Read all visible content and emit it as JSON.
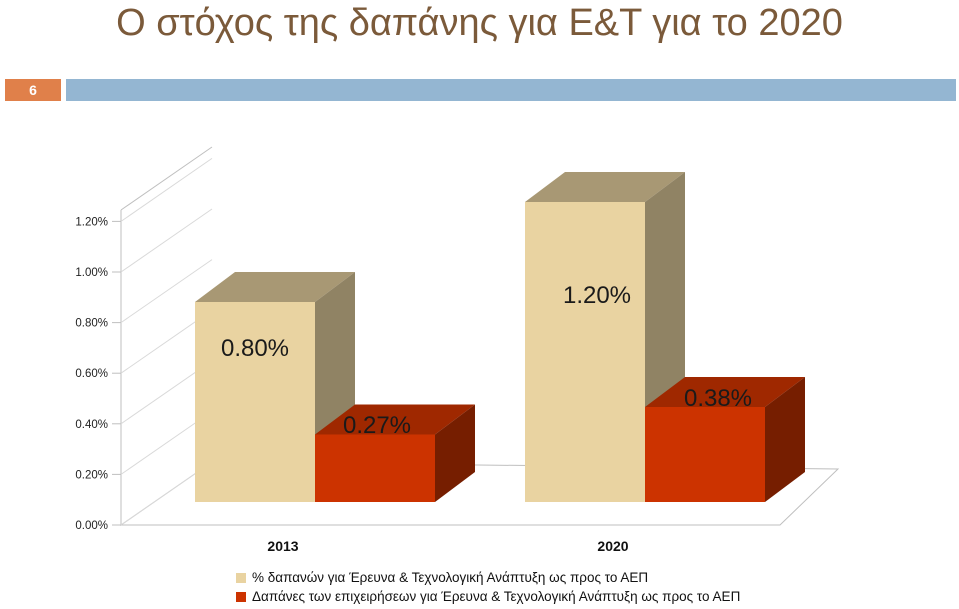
{
  "slide": {
    "title": "Ο στόχος της δαπάνης για Ε&Τ για το  2020",
    "number": "6"
  },
  "colors": {
    "title": "#7b5a3a",
    "slide_number_bg": "#e0804a",
    "header_bar": "#94b6d2",
    "series_1": "#e9d3a1",
    "series_2": "#cc3300"
  },
  "chart_data": {
    "type": "bar",
    "style": "3d-clustered-column",
    "categories": [
      "2013",
      "2020"
    ],
    "series": [
      {
        "name": "% δαπανών για Έρευνα & Τεχνολογική Ανάπτυξη ως προς το ΑΕΠ",
        "values": [
          0.8,
          1.2
        ],
        "data_labels": [
          "0.80%",
          "1.20%"
        ]
      },
      {
        "name": "Δαπάνες των επιχειρήσεων για Έρευνα & Τεχνολογική Ανάπτυξη ως προς το ΑΕΠ",
        "values": [
          0.27,
          0.38
        ],
        "data_labels": [
          "0.27%",
          "0.38%"
        ]
      }
    ],
    "y_ticks": [
      "0.00%",
      "0.20%",
      "0.40%",
      "0.60%",
      "0.80%",
      "1.00%",
      "1.20%"
    ],
    "ylim": [
      0,
      1.2
    ],
    "grid": false,
    "legend_position": "bottom"
  }
}
